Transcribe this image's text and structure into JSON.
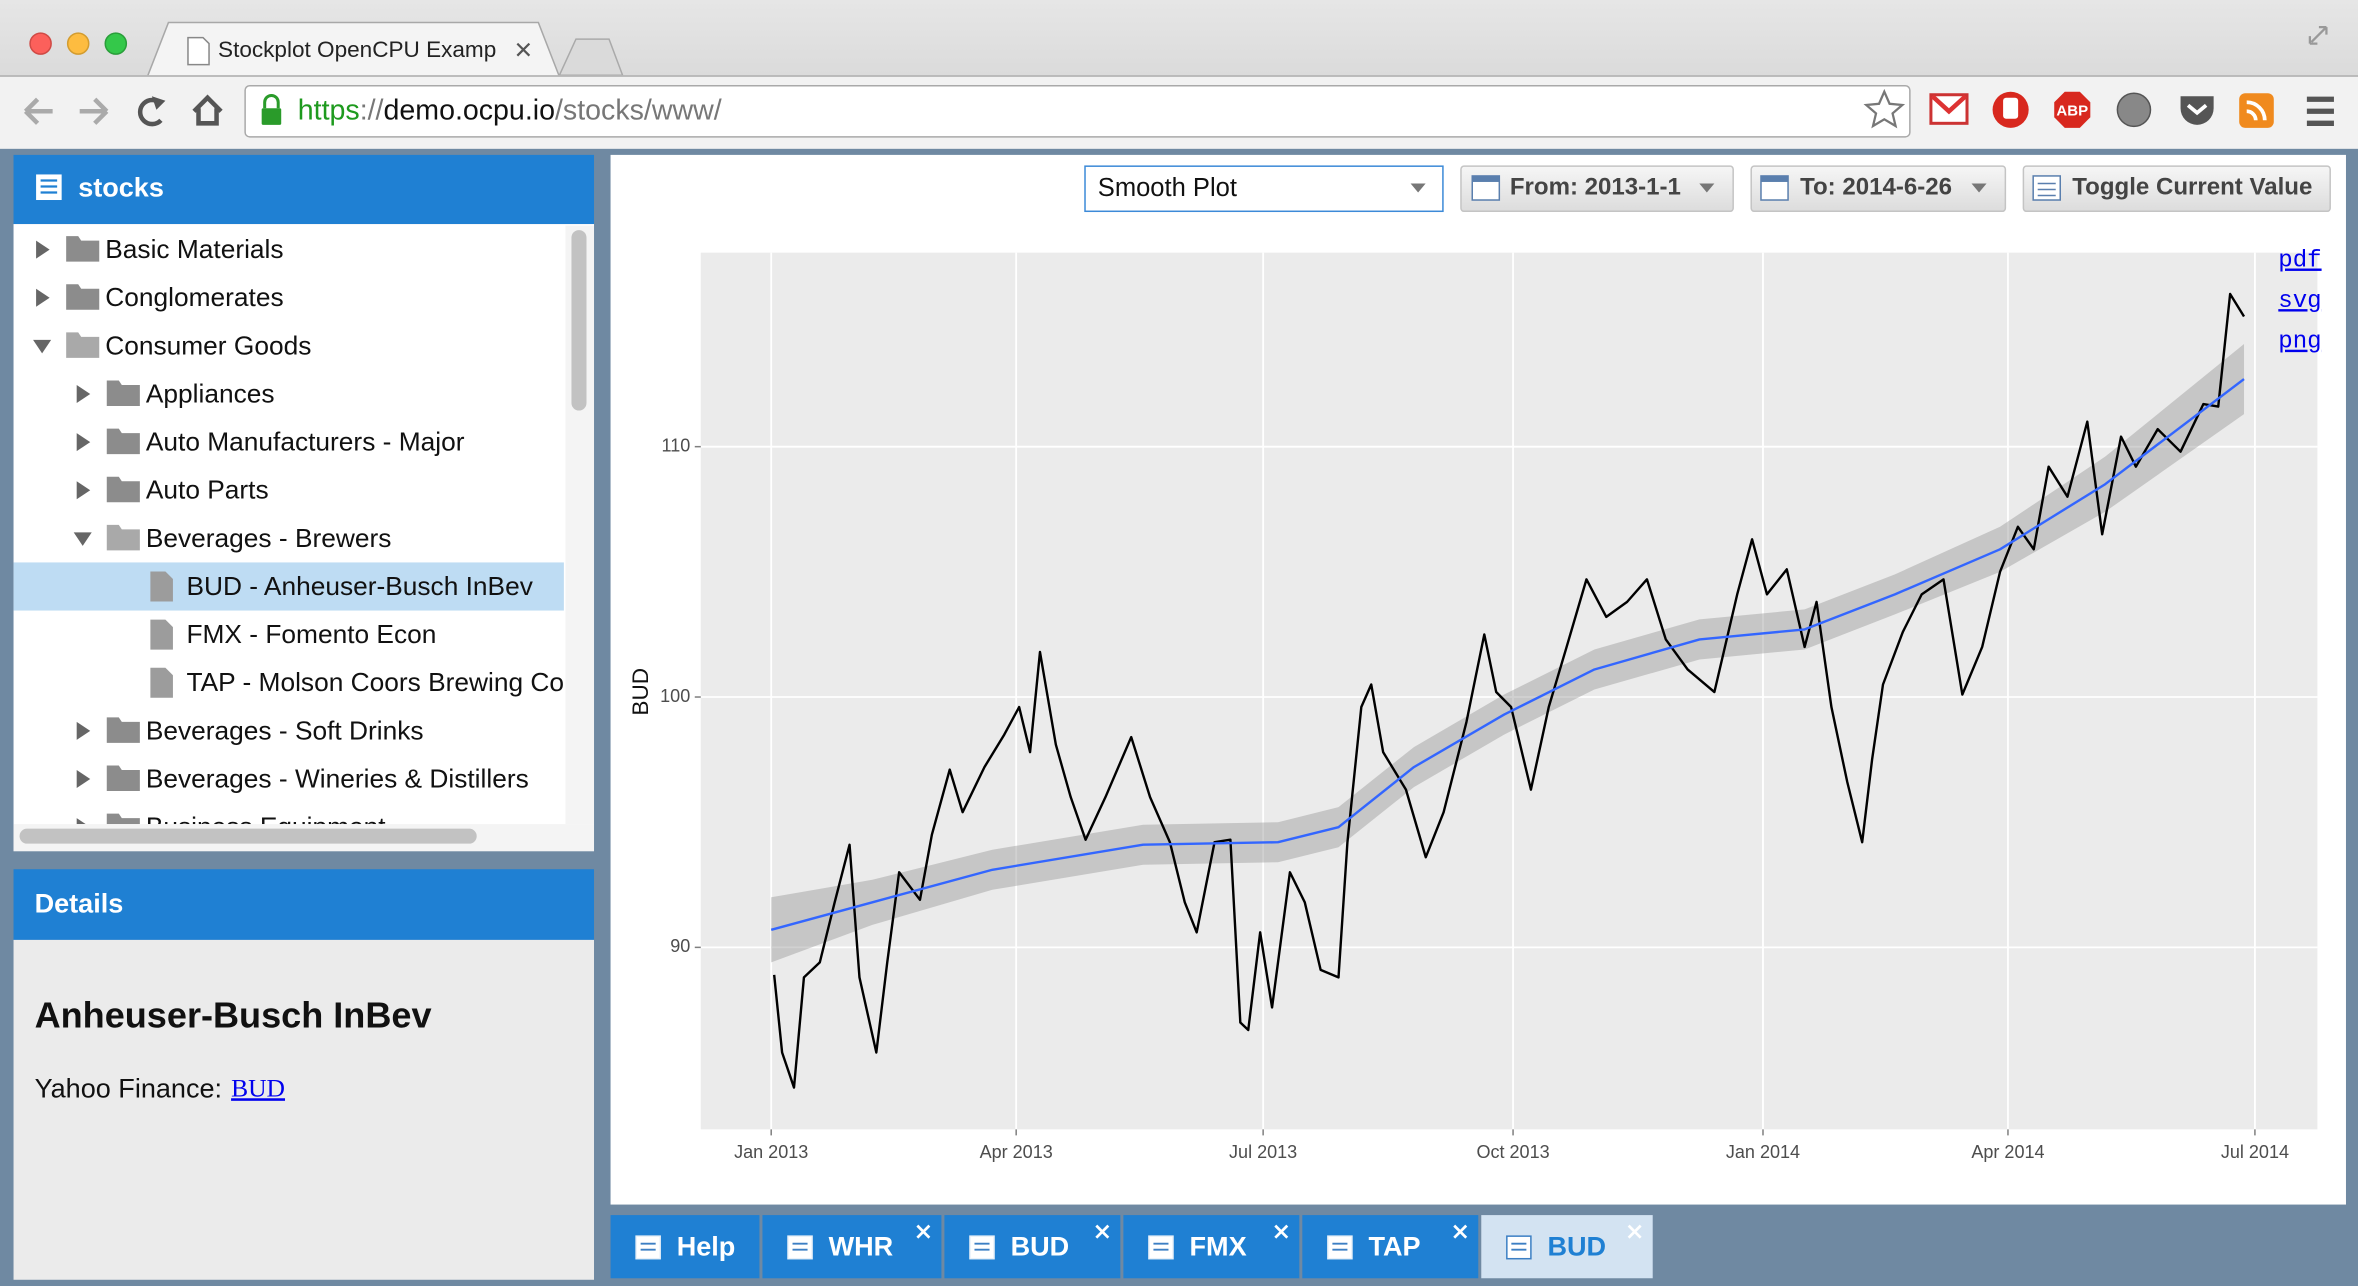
{
  "browser": {
    "tab_title": "Stockplot OpenCPU Examp",
    "url": [
      "https",
      "://",
      "demo.ocpu.io",
      "/stocks/www/"
    ],
    "abp_icon": "ABP"
  },
  "sidebar": {
    "title": "stocks",
    "tree": [
      {
        "label": "Basic Materials",
        "open": false
      },
      {
        "label": "Conglomerates",
        "open": false
      },
      {
        "label": "Consumer Goods",
        "open": true,
        "children": [
          {
            "label": "Appliances",
            "open": false
          },
          {
            "label": "Auto Manufacturers - Major",
            "open": false
          },
          {
            "label": "Auto Parts",
            "open": false
          },
          {
            "label": "Beverages - Brewers",
            "open": true,
            "children": [
              {
                "label": "BUD - Anheuser-Busch InBev",
                "selected": true
              },
              {
                "label": "FMX - Fomento Econ"
              },
              {
                "label": "TAP - Molson Coors Brewing Co"
              }
            ]
          },
          {
            "label": "Beverages - Soft Drinks",
            "open": false
          },
          {
            "label": "Beverages - Wineries & Distillers",
            "open": false
          },
          {
            "label": "Business Equipment",
            "open": false
          }
        ]
      }
    ]
  },
  "details": {
    "title": "Details",
    "name": "Anheuser-Busch InBev",
    "source_label": "Yahoo Finance:",
    "link": "BUD"
  },
  "toolbar": {
    "plot_type": "Smooth Plot",
    "from": "From: 2013-1-1",
    "to": "To: 2014-6-26",
    "toggle": "Toggle Current Value"
  },
  "downloads": [
    "pdf",
    "svg",
    "png"
  ],
  "chart_data": {
    "type": "line",
    "ylabel": "BUD",
    "grid": true,
    "xlim": [
      2012.929,
      2014.559
    ],
    "ylim": [
      82.73,
      117.75
    ],
    "xticks": [
      {
        "value": 2013.0,
        "label": "Jan 2013"
      },
      {
        "value": 2013.247,
        "label": "Apr 2013"
      },
      {
        "value": 2013.496,
        "label": "Jul 2013"
      },
      {
        "value": 2013.748,
        "label": "Oct 2013"
      },
      {
        "value": 2014.0,
        "label": "Jan 2014"
      },
      {
        "value": 2014.247,
        "label": "Apr 2014"
      },
      {
        "value": 2014.496,
        "label": "Jul 2014"
      }
    ],
    "yticks": [
      90,
      100,
      110
    ],
    "series": [
      {
        "color": "#000000",
        "x": [
          2013.003,
          2013.011,
          2013.023,
          2013.033,
          2013.049,
          2013.064,
          2013.079,
          2013.089,
          2013.106,
          2013.117,
          2013.129,
          2013.15,
          2013.162,
          2013.18,
          2013.193,
          2013.215,
          2013.235,
          2013.25,
          2013.261,
          2013.271,
          2013.287,
          2013.302,
          2013.317,
          2013.337,
          2013.363,
          2013.382,
          2013.402,
          2013.417,
          2013.429,
          2013.447,
          2013.463,
          2013.473,
          2013.481,
          2013.493,
          2013.505,
          2013.523,
          2013.538,
          2013.554,
          2013.572,
          2013.581,
          2013.595,
          2013.605,
          2013.617,
          2013.64,
          2013.66,
          2013.678,
          2013.701,
          2013.719,
          2013.731,
          2013.746,
          2013.766,
          2013.784,
          2013.802,
          2013.822,
          2013.842,
          2013.863,
          2013.883,
          2013.902,
          2013.924,
          2013.951,
          2013.974,
          2013.989,
          2014.004,
          2014.024,
          2014.042,
          2014.054,
          2014.069,
          2014.085,
          2014.1,
          2014.11,
          2014.121,
          2014.141,
          2014.16,
          2014.182,
          2014.201,
          2014.221,
          2014.239,
          2014.257,
          2014.273,
          2014.288,
          2014.307,
          2014.327,
          2014.342,
          2014.361,
          2014.376,
          2014.398,
          2014.421,
          2014.444,
          2014.459,
          2014.471,
          2014.485
        ],
        "values": [
          88.9,
          85.8,
          84.4,
          88.8,
          89.4,
          91.8,
          94.1,
          88.8,
          85.8,
          89.4,
          93.0,
          91.9,
          94.5,
          97.1,
          95.4,
          97.2,
          98.5,
          99.6,
          97.8,
          101.8,
          98.1,
          96.0,
          94.3,
          96.0,
          98.4,
          96.0,
          94.2,
          91.8,
          90.6,
          94.2,
          94.3,
          87.0,
          86.7,
          90.6,
          87.6,
          93.0,
          91.8,
          89.1,
          88.8,
          94.2,
          99.6,
          100.5,
          97.8,
          96.3,
          93.6,
          95.4,
          99.0,
          102.5,
          100.2,
          99.6,
          96.3,
          99.6,
          102.0,
          104.7,
          103.2,
          103.8,
          104.7,
          102.3,
          101.1,
          100.2,
          104.1,
          106.3,
          104.1,
          105.1,
          102.0,
          103.8,
          99.6,
          96.6,
          94.2,
          97.5,
          100.5,
          102.6,
          104.1,
          104.7,
          100.1,
          102.0,
          105.0,
          106.8,
          105.9,
          109.2,
          108.0,
          111.0,
          106.5,
          110.4,
          109.2,
          110.7,
          109.8,
          111.7,
          111.6,
          116.1,
          115.2
        ]
      },
      {
        "color": "#3366ff",
        "band_color": "#999999",
        "x": [
          2013.0,
          2013.102,
          2013.223,
          2013.375,
          2013.511,
          2013.572,
          2013.648,
          2013.739,
          2013.83,
          2013.936,
          2014.042,
          2014.133,
          2014.239,
          2014.345,
          2014.485
        ],
        "values": [
          90.7,
          91.8,
          93.1,
          94.1,
          94.2,
          94.8,
          97.2,
          99.3,
          101.1,
          102.3,
          102.7,
          104.1,
          105.9,
          108.5,
          112.7
        ],
        "upper": [
          92.0,
          92.7,
          93.9,
          94.9,
          95.0,
          95.6,
          98.0,
          100.1,
          101.9,
          103.1,
          103.5,
          104.9,
          106.8,
          109.6,
          114.1
        ],
        "lower": [
          89.4,
          90.9,
          92.3,
          93.3,
          93.4,
          94.0,
          96.4,
          98.5,
          100.3,
          101.5,
          101.9,
          103.3,
          105.0,
          107.4,
          111.3
        ]
      }
    ]
  },
  "tabs": [
    {
      "label": "Help",
      "closable": false
    },
    {
      "label": "WHR",
      "closable": true
    },
    {
      "label": "BUD",
      "closable": true
    },
    {
      "label": "FMX",
      "closable": true
    },
    {
      "label": "TAP",
      "closable": true
    },
    {
      "label": "BUD",
      "closable": true,
      "active": true
    }
  ]
}
